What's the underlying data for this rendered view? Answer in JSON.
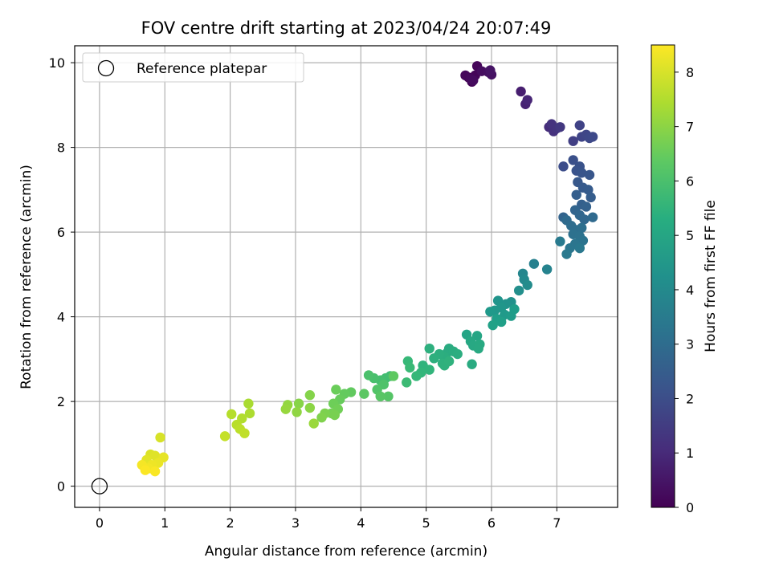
{
  "chart_data": {
    "type": "scatter",
    "title": "FOV centre drift starting at 2023/04/24 20:07:49",
    "xlabel": "Angular distance from reference (arcmin)",
    "ylabel": "Rotation from reference (arcmin)",
    "xlim": [
      -0.38,
      7.93
    ],
    "ylim": [
      -0.5,
      10.4
    ],
    "xticks": [
      0,
      1,
      2,
      3,
      4,
      5,
      6,
      7
    ],
    "yticks": [
      0,
      2,
      4,
      6,
      8,
      10
    ],
    "grid": true,
    "legend": {
      "placement": "top-left",
      "entries": [
        {
          "label": "Reference platepar",
          "marker": "open-circle"
        }
      ]
    },
    "reference_point": {
      "x": 0,
      "y": 0
    },
    "colorbar": {
      "label": "Hours from first FF file",
      "colormap": "viridis",
      "range": [
        0,
        8.5
      ],
      "ticks": [
        0,
        1,
        2,
        3,
        4,
        5,
        6,
        7,
        8
      ]
    },
    "points": [
      [
        5.65,
        9.65,
        0.0
      ],
      [
        5.7,
        9.55,
        0.05
      ],
      [
        5.75,
        9.7,
        0.1
      ],
      [
        5.78,
        9.92,
        0.12
      ],
      [
        5.6,
        9.7,
        0.15
      ],
      [
        5.68,
        9.62,
        0.2
      ],
      [
        5.72,
        9.58,
        0.25
      ],
      [
        5.85,
        9.8,
        0.3
      ],
      [
        5.95,
        9.78,
        0.35
      ],
      [
        6.0,
        9.72,
        0.4
      ],
      [
        5.98,
        9.82,
        0.45
      ],
      [
        6.45,
        9.32,
        0.7
      ],
      [
        6.52,
        9.02,
        0.8
      ],
      [
        6.55,
        9.12,
        0.9
      ],
      [
        6.88,
        8.48,
        1.1
      ],
      [
        6.95,
        8.38,
        1.2
      ],
      [
        6.92,
        8.55,
        1.25
      ],
      [
        7.0,
        8.45,
        1.3
      ],
      [
        7.05,
        8.48,
        1.4
      ],
      [
        7.25,
        8.15,
        1.6
      ],
      [
        7.35,
        8.52,
        1.7
      ],
      [
        7.38,
        8.25,
        1.75
      ],
      [
        7.45,
        8.3,
        1.8
      ],
      [
        7.5,
        8.22,
        1.85
      ],
      [
        7.55,
        8.25,
        1.9
      ],
      [
        7.1,
        7.55,
        2.0
      ],
      [
        7.25,
        7.7,
        2.1
      ],
      [
        7.35,
        7.55,
        2.15
      ],
      [
        7.3,
        7.45,
        2.2
      ],
      [
        7.38,
        7.4,
        2.25
      ],
      [
        7.5,
        7.35,
        2.3
      ],
      [
        7.32,
        7.18,
        2.35
      ],
      [
        7.4,
        7.05,
        2.4
      ],
      [
        7.48,
        7.0,
        2.45
      ],
      [
        7.52,
        6.82,
        2.5
      ],
      [
        7.3,
        6.88,
        2.55
      ],
      [
        7.38,
        6.65,
        2.6
      ],
      [
        7.45,
        6.6,
        2.65
      ],
      [
        7.1,
        6.35,
        2.7
      ],
      [
        7.28,
        6.52,
        2.75
      ],
      [
        7.35,
        6.4,
        2.8
      ],
      [
        7.42,
        6.3,
        2.85
      ],
      [
        7.55,
        6.35,
        2.9
      ],
      [
        7.15,
        6.28,
        2.95
      ],
      [
        7.22,
        6.15,
        3.0
      ],
      [
        7.3,
        6.05,
        3.05
      ],
      [
        7.38,
        6.1,
        3.1
      ],
      [
        7.25,
        5.95,
        3.15
      ],
      [
        7.35,
        5.9,
        3.2
      ],
      [
        7.4,
        5.8,
        3.25
      ],
      [
        7.28,
        5.72,
        3.3
      ],
      [
        7.2,
        5.62,
        3.35
      ],
      [
        7.35,
        5.62,
        3.4
      ],
      [
        7.15,
        5.48,
        3.45
      ],
      [
        7.05,
        5.78,
        3.5
      ],
      [
        6.65,
        5.25,
        3.7
      ],
      [
        6.85,
        5.12,
        3.8
      ],
      [
        6.48,
        5.02,
        3.9
      ],
      [
        6.5,
        4.88,
        4.0
      ],
      [
        6.55,
        4.75,
        4.1
      ],
      [
        6.42,
        4.62,
        4.2
      ],
      [
        6.3,
        4.35,
        4.3
      ],
      [
        6.22,
        4.3,
        4.35
      ],
      [
        6.1,
        4.38,
        4.4
      ],
      [
        6.15,
        4.22,
        4.45
      ],
      [
        6.05,
        4.15,
        4.5
      ],
      [
        5.98,
        4.12,
        4.55
      ],
      [
        6.2,
        4.05,
        4.6
      ],
      [
        6.3,
        4.02,
        4.65
      ],
      [
        6.35,
        4.18,
        4.7
      ],
      [
        6.08,
        3.95,
        4.75
      ],
      [
        6.15,
        3.88,
        4.8
      ],
      [
        6.02,
        3.8,
        4.85
      ],
      [
        5.62,
        3.58,
        4.95
      ],
      [
        5.78,
        3.55,
        5.0
      ],
      [
        5.68,
        3.42,
        5.05
      ],
      [
        5.72,
        3.32,
        5.1
      ],
      [
        5.82,
        3.35,
        5.12
      ],
      [
        5.8,
        3.25,
        5.15
      ],
      [
        5.7,
        2.88,
        5.18
      ],
      [
        5.35,
        3.25,
        5.2
      ],
      [
        5.32,
        3.15,
        5.22
      ],
      [
        5.42,
        3.18,
        5.25
      ],
      [
        5.48,
        3.12,
        5.28
      ],
      [
        5.28,
        3.05,
        5.3
      ],
      [
        5.2,
        3.12,
        5.32
      ],
      [
        5.12,
        3.02,
        5.35
      ],
      [
        5.05,
        3.25,
        5.38
      ],
      [
        5.25,
        2.9,
        5.4
      ],
      [
        5.28,
        2.85,
        5.42
      ],
      [
        5.35,
        2.95,
        5.45
      ],
      [
        4.95,
        2.85,
        5.5
      ],
      [
        5.05,
        2.75,
        5.55
      ],
      [
        4.92,
        2.68,
        5.6
      ],
      [
        4.85,
        2.6,
        5.65
      ],
      [
        4.72,
        2.95,
        5.7
      ],
      [
        4.75,
        2.8,
        5.75
      ],
      [
        4.7,
        2.45,
        5.8
      ],
      [
        4.45,
        2.6,
        5.85
      ],
      [
        4.38,
        2.55,
        5.9
      ],
      [
        4.3,
        2.5,
        5.95
      ],
      [
        4.2,
        2.55,
        6.0
      ],
      [
        4.12,
        2.62,
        6.05
      ],
      [
        4.35,
        2.4,
        6.1
      ],
      [
        4.25,
        2.28,
        6.15
      ],
      [
        4.42,
        2.12,
        6.2
      ],
      [
        4.3,
        2.12,
        6.25
      ],
      [
        4.05,
        2.18,
        6.3
      ],
      [
        4.5,
        2.6,
        6.35
      ],
      [
        3.85,
        2.22,
        6.4
      ],
      [
        3.75,
        2.18,
        6.45
      ],
      [
        3.68,
        2.05,
        6.5
      ],
      [
        3.62,
        2.28,
        6.55
      ],
      [
        3.58,
        1.95,
        6.6
      ],
      [
        3.65,
        1.82,
        6.65
      ],
      [
        3.55,
        1.72,
        6.7
      ],
      [
        3.6,
        1.68,
        6.75
      ],
      [
        3.45,
        1.72,
        6.8
      ],
      [
        3.4,
        1.62,
        6.85
      ],
      [
        3.22,
        2.15,
        6.9
      ],
      [
        3.05,
        1.95,
        6.95
      ],
      [
        3.22,
        1.85,
        7.0
      ],
      [
        3.02,
        1.75,
        7.05
      ],
      [
        2.88,
        1.92,
        7.1
      ],
      [
        2.85,
        1.82,
        7.15
      ],
      [
        3.28,
        1.48,
        7.2
      ],
      [
        2.28,
        1.95,
        7.4
      ],
      [
        2.3,
        1.72,
        7.45
      ],
      [
        2.18,
        1.6,
        7.5
      ],
      [
        2.02,
        1.7,
        7.55
      ],
      [
        2.1,
        1.45,
        7.6
      ],
      [
        2.15,
        1.35,
        7.65
      ],
      [
        2.22,
        1.25,
        7.7
      ],
      [
        1.92,
        1.18,
        7.75
      ],
      [
        0.93,
        1.15,
        8.0
      ],
      [
        0.78,
        0.75,
        8.05
      ],
      [
        0.85,
        0.72,
        8.1
      ],
      [
        0.72,
        0.62,
        8.15
      ],
      [
        0.98,
        0.68,
        8.2
      ],
      [
        0.9,
        0.55,
        8.25
      ],
      [
        0.8,
        0.5,
        8.3
      ],
      [
        0.75,
        0.42,
        8.35
      ],
      [
        0.65,
        0.5,
        8.4
      ],
      [
        0.85,
        0.35,
        8.45
      ],
      [
        0.7,
        0.38,
        8.48
      ]
    ]
  }
}
